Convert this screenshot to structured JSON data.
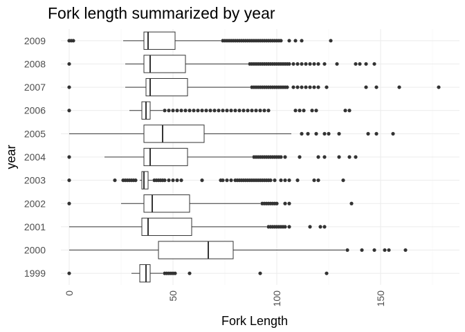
{
  "chart_data": {
    "type": "boxplot",
    "orientation": "horizontal",
    "title": "Fork length summarized by year",
    "xlabel": "Fork Length",
    "ylabel": "year",
    "xlim": [
      -4,
      188
    ],
    "xticks": [
      0,
      50,
      100,
      150
    ],
    "grid": true,
    "legend": "none",
    "series": [
      {
        "category": "1999",
        "min": 30,
        "q1": 34,
        "median": 37,
        "q3": 39,
        "max": 45,
        "outliers": [
          0,
          46,
          47,
          48,
          49,
          50,
          51,
          58,
          92,
          124
        ]
      },
      {
        "category": "2000",
        "min": 0,
        "q1": 43,
        "median": 67,
        "q3": 79,
        "max": 133,
        "outliers": [
          134,
          141,
          147,
          152,
          154,
          162
        ]
      },
      {
        "category": "2001",
        "min": 0,
        "q1": 35,
        "median": 38,
        "q3": 59,
        "max": 95,
        "outliers": [
          96,
          97,
          98,
          99,
          100,
          101,
          102,
          103,
          104,
          106,
          116,
          121,
          123
        ]
      },
      {
        "category": "2002",
        "min": 25,
        "q1": 36,
        "median": 40,
        "q3": 58,
        "max": 92,
        "outliers": [
          0,
          93,
          94,
          95,
          96,
          97,
          98,
          99,
          100,
          104,
          106,
          136
        ]
      },
      {
        "category": "2003",
        "min": 34,
        "q1": 35,
        "median": 36,
        "q3": 38,
        "max": 40,
        "outliers": [
          0,
          22,
          26,
          27,
          28,
          29,
          30,
          31,
          32,
          41,
          42,
          43,
          44,
          45,
          46,
          48,
          50,
          52,
          54,
          64,
          73,
          74,
          76,
          78,
          80,
          81,
          82,
          83,
          84,
          85,
          86,
          87,
          88,
          89,
          90,
          91,
          92,
          93,
          94,
          95,
          96,
          97,
          99,
          102,
          104,
          106,
          110,
          118,
          120,
          132
        ]
      },
      {
        "category": "2004",
        "min": 17,
        "q1": 36,
        "median": 39,
        "q3": 57,
        "max": 88,
        "outliers": [
          0,
          89,
          90,
          91,
          92,
          93,
          94,
          95,
          96,
          97,
          98,
          99,
          100,
          101,
          102,
          104,
          111,
          120,
          123,
          130,
          135,
          138
        ]
      },
      {
        "category": "2005",
        "min": 0,
        "q1": 36,
        "median": 45,
        "q3": 65,
        "max": 107,
        "outliers": [
          112,
          115,
          119,
          123,
          125,
          130,
          144,
          148,
          156
        ]
      },
      {
        "category": "2006",
        "min": 29,
        "q1": 35,
        "median": 37,
        "q3": 39,
        "max": 45,
        "outliers": [
          0,
          46,
          48,
          50,
          52,
          54,
          56,
          58,
          60,
          62,
          64,
          66,
          68,
          70,
          72,
          74,
          76,
          78,
          80,
          82,
          84,
          86,
          88,
          90,
          92,
          94,
          96,
          109,
          111,
          113,
          117,
          119,
          133,
          135
        ]
      },
      {
        "category": "2007",
        "min": 27,
        "q1": 37,
        "median": 39,
        "q3": 57,
        "max": 87,
        "outliers": [
          0,
          88,
          89,
          90,
          91,
          92,
          93,
          94,
          95,
          96,
          97,
          98,
          99,
          100,
          101,
          102,
          103,
          104,
          105,
          108,
          110,
          112,
          114,
          116,
          118,
          120,
          124,
          143,
          148,
          159,
          178
        ]
      },
      {
        "category": "2008",
        "min": 27,
        "q1": 36,
        "median": 39,
        "q3": 56,
        "max": 86,
        "outliers": [
          0,
          87,
          88,
          89,
          90,
          91,
          92,
          93,
          94,
          95,
          96,
          97,
          98,
          99,
          100,
          101,
          102,
          103,
          104,
          105,
          106,
          108,
          110,
          112,
          114,
          116,
          118,
          120,
          123,
          129,
          138,
          140,
          143,
          147
        ]
      },
      {
        "category": "2009",
        "min": 26,
        "q1": 36,
        "median": 38,
        "q3": 51,
        "max": 73,
        "outliers": [
          0,
          1,
          2,
          74,
          75,
          76,
          77,
          78,
          79,
          80,
          81,
          82,
          83,
          84,
          85,
          86,
          87,
          88,
          89,
          90,
          91,
          92,
          93,
          94,
          95,
          96,
          97,
          98,
          99,
          100,
          101,
          102,
          106,
          109,
          112,
          126
        ]
      }
    ]
  }
}
